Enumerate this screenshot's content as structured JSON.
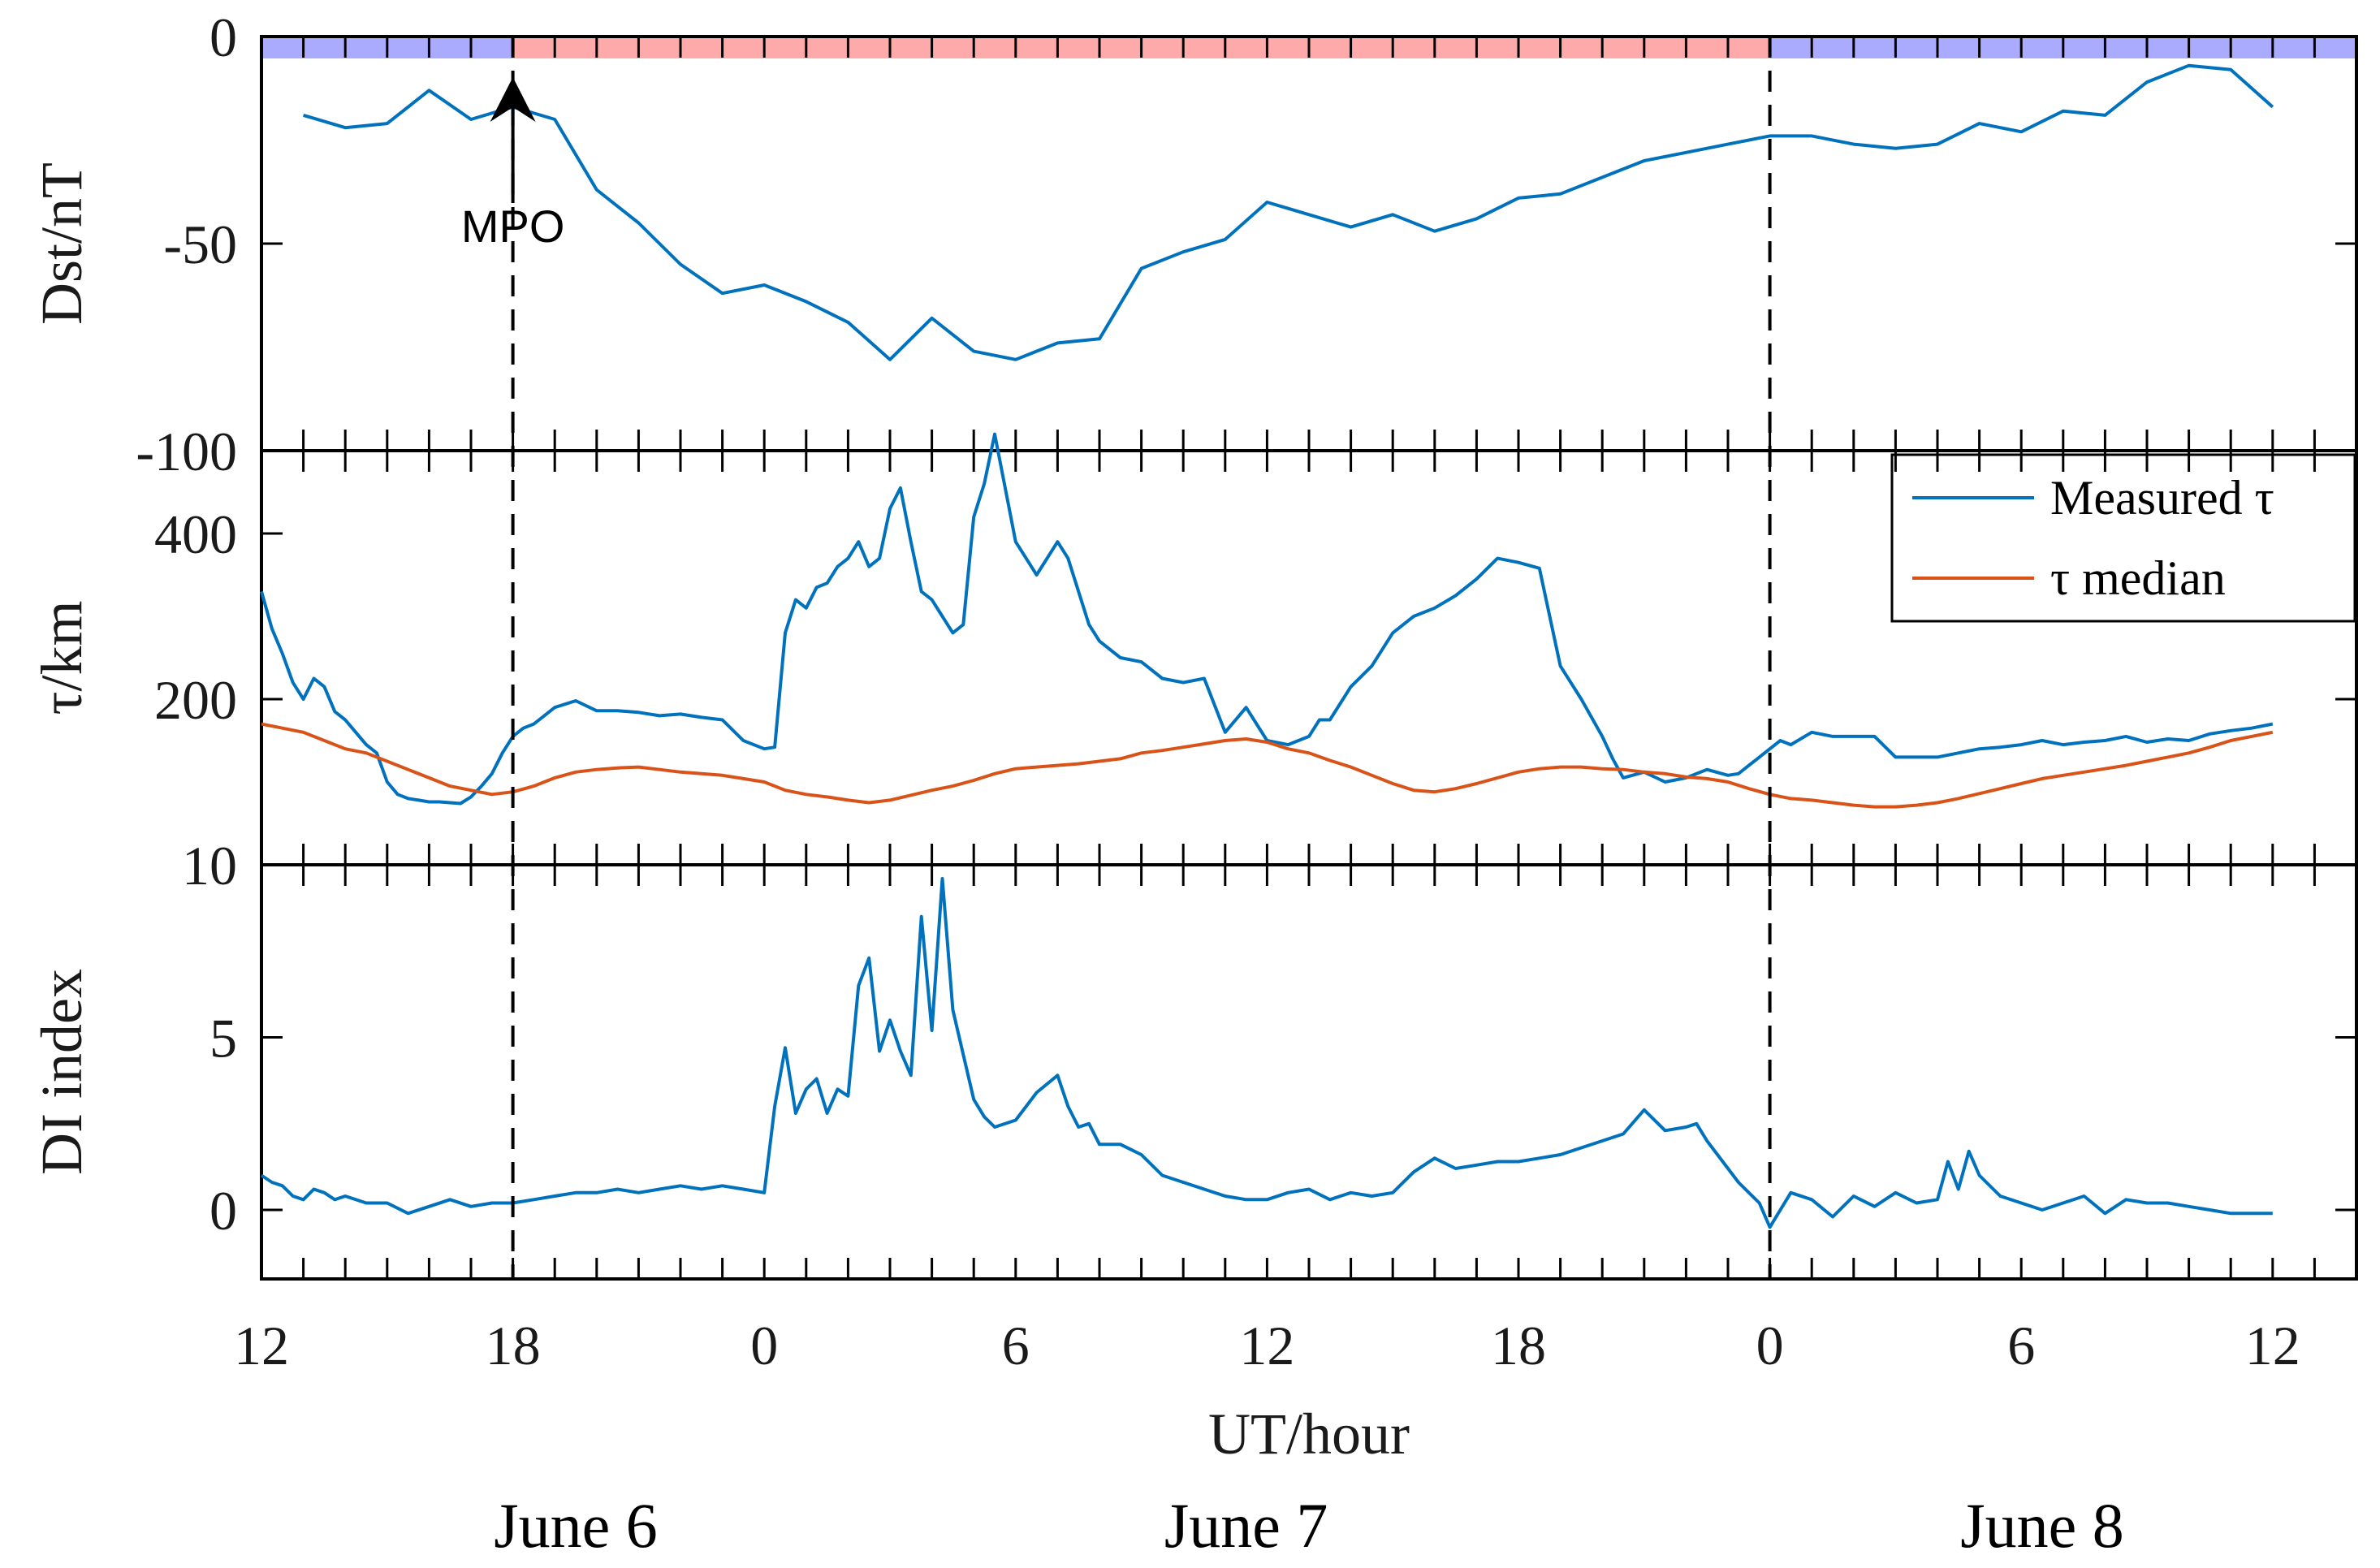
{
  "chart_data": {
    "type": "line",
    "x_axis": {
      "label": "UT/hour",
      "range_hours": [
        0,
        50
      ],
      "tick_hours": [
        0,
        6,
        12,
        18,
        24,
        30,
        36,
        42,
        48
      ],
      "tick_labels": [
        "12",
        "18",
        "0",
        "6",
        "12",
        "18",
        "0",
        "6",
        "12"
      ],
      "date_labels": [
        {
          "text": "June 6",
          "at_hour": 7.5
        },
        {
          "text": "June 7",
          "at_hour": 23.5
        },
        {
          "text": "June 8",
          "at_hour": 42.5
        }
      ]
    },
    "markers": {
      "dashed_lines_hours": [
        6,
        36
      ],
      "annotation": {
        "text": "MPO",
        "at_hour": 6
      },
      "phase_bar": [
        {
          "from": 0,
          "to": 6,
          "color": "#aaaaff"
        },
        {
          "from": 6,
          "to": 36,
          "color": "#ffaaaa"
        },
        {
          "from": 36,
          "to": 50,
          "color": "#aaaaff"
        }
      ]
    },
    "colors": {
      "blue": "#0072BD",
      "orange": "#D95319"
    },
    "panels": [
      {
        "id": "dst",
        "ylabel": "Dst/nT",
        "ylim": [
          -100,
          0
        ],
        "yticks": [
          0,
          -50,
          -100
        ],
        "ytick_labels": [
          "0",
          "-50",
          "-100"
        ],
        "series": [
          {
            "name": "Dst",
            "color": "#0072BD",
            "x": [
              1,
              2,
              3,
              4,
              5,
              6,
              7,
              8,
              9,
              10,
              11,
              12,
              13,
              14,
              15,
              16,
              17,
              18,
              19,
              20,
              21,
              22,
              23,
              24,
              25,
              26,
              27,
              28,
              29,
              30,
              31,
              32,
              33,
              34,
              35,
              36,
              37,
              38,
              39,
              40,
              41,
              42,
              43,
              44,
              45,
              46,
              47,
              48
            ],
            "y": [
              -19,
              -22,
              -21,
              -13,
              -20,
              -17,
              -20,
              -37,
              -45,
              -55,
              -62,
              -60,
              -64,
              -69,
              -78,
              -68,
              -76,
              -78,
              -74,
              -73,
              -56,
              -52,
              -49,
              -40,
              -43,
              -46,
              -43,
              -47,
              -44,
              -39,
              -38,
              -34,
              -30,
              -28,
              -26,
              -24,
              -24,
              -26,
              -27,
              -26,
              -21,
              -23,
              -18,
              -19,
              -11,
              -7,
              -8,
              -17
            ]
          }
        ]
      },
      {
        "id": "tau",
        "ylabel": "τ/km",
        "ylim": [
          0,
          500
        ],
        "yticks": [
          200,
          400
        ],
        "ytick_labels": [
          "200",
          "400"
        ],
        "legend": {
          "entries": [
            {
              "label": "Measured τ",
              "color": "#0072BD"
            },
            {
              "label": "τ median",
              "color": "#D95319"
            }
          ]
        },
        "series": [
          {
            "name": "Measured τ",
            "color": "#0072BD",
            "x": [
              0,
              0.25,
              0.5,
              0.75,
              1,
              1.25,
              1.5,
              1.75,
              2,
              2.25,
              2.5,
              2.75,
              3,
              3.25,
              3.5,
              3.75,
              4,
              4.25,
              4.5,
              4.75,
              5,
              5.25,
              5.5,
              5.75,
              6,
              6.25,
              6.5,
              6.75,
              7,
              7.5,
              8,
              8.5,
              9,
              9.5,
              10,
              10.5,
              11,
              11.5,
              12,
              12.25,
              12.5,
              12.75,
              13,
              13.25,
              13.5,
              13.75,
              14,
              14.25,
              14.5,
              14.75,
              15,
              15.25,
              15.5,
              15.75,
              16,
              16.25,
              16.5,
              16.75,
              17,
              17.25,
              17.5,
              18,
              18.5,
              19,
              19.25,
              19.5,
              19.75,
              20,
              20.5,
              21,
              21.5,
              22,
              22.5,
              23,
              23.5,
              24,
              24.5,
              25,
              25.25,
              25.5,
              26,
              26.5,
              27,
              27.5,
              28,
              28.5,
              29,
              29.5,
              30,
              30.5,
              31,
              31.5,
              32,
              32.25,
              32.5,
              33,
              33.5,
              34,
              34.5,
              35,
              35.25,
              35.5,
              35.75,
              36,
              36.25,
              36.5,
              37,
              37.5,
              38,
              38.5,
              39,
              39.5,
              40,
              40.5,
              41,
              41.5,
              42,
              42.5,
              43,
              43.5,
              44,
              44.5,
              45,
              45.5,
              46,
              46.5,
              47,
              47.5,
              48
            ],
            "y": [
              330,
              285,
              255,
              220,
              200,
              225,
              215,
              185,
              175,
              160,
              145,
              135,
              100,
              85,
              80,
              78,
              76,
              76,
              75,
              74,
              82,
              95,
              110,
              135,
              155,
              165,
              170,
              180,
              190,
              198,
              186,
              186,
              184,
              180,
              182,
              178,
              175,
              150,
              140,
              142,
              280,
              320,
              310,
              335,
              340,
              360,
              370,
              390,
              360,
              370,
              430,
              455,
              390,
              330,
              320,
              300,
              280,
              290,
              420,
              460,
              520,
              390,
              350,
              390,
              370,
              330,
              290,
              270,
              250,
              245,
              225,
              220,
              225,
              160,
              190,
              150,
              145,
              155,
              175,
              175,
              215,
              240,
              280,
              300,
              310,
              325,
              345,
              370,
              365,
              358,
              240,
              200,
              155,
              128,
              105,
              112,
              100,
              105,
              115,
              108,
              110,
              120,
              130,
              140,
              150,
              145,
              160,
              155,
              155,
              155,
              130,
              130,
              130,
              135,
              140,
              142,
              145,
              150,
              145,
              148,
              150,
              155,
              148,
              152,
              150,
              158,
              162,
              165,
              170
            ]
          },
          {
            "name": "τ median",
            "color": "#D95319",
            "x": [
              0,
              0.5,
              1,
              1.5,
              2,
              2.5,
              3,
              3.5,
              4,
              4.5,
              5,
              5.5,
              6,
              6.5,
              7,
              7.5,
              8,
              8.5,
              9,
              9.5,
              10,
              10.5,
              11,
              11.5,
              12,
              12.5,
              13,
              13.5,
              14,
              14.5,
              15,
              15.5,
              16,
              16.5,
              17,
              17.5,
              18,
              18.5,
              19,
              19.5,
              20,
              20.5,
              21,
              21.5,
              22,
              22.5,
              23,
              23.5,
              24,
              24.5,
              25,
              25.5,
              26,
              26.5,
              27,
              27.5,
              28,
              28.5,
              29,
              29.5,
              30,
              30.5,
              31,
              31.5,
              32,
              32.5,
              33,
              33.5,
              34,
              34.5,
              35,
              35.5,
              36,
              36.5,
              37,
              37.5,
              38,
              38.5,
              39,
              39.5,
              40,
              40.5,
              41,
              41.5,
              42,
              42.5,
              43,
              43.5,
              44,
              44.5,
              45,
              45.5,
              46,
              46.5,
              47,
              47.5,
              48
            ],
            "y": [
              170,
              165,
              160,
              150,
              140,
              135,
              125,
              115,
              105,
              95,
              90,
              85,
              88,
              95,
              105,
              112,
              115,
              117,
              118,
              115,
              112,
              110,
              108,
              104,
              100,
              90,
              85,
              82,
              78,
              75,
              78,
              84,
              90,
              95,
              102,
              110,
              116,
              118,
              120,
              122,
              125,
              128,
              135,
              138,
              142,
              146,
              150,
              152,
              148,
              140,
              135,
              126,
              118,
              108,
              98,
              90,
              88,
              92,
              98,
              105,
              112,
              116,
              118,
              118,
              116,
              115,
              112,
              110,
              106,
              104,
              100,
              92,
              85,
              80,
              78,
              75,
              72,
              70,
              70,
              72,
              75,
              80,
              86,
              92,
              98,
              104,
              108,
              112,
              116,
              120,
              125,
              130,
              135,
              142,
              150,
              155,
              160
            ]
          }
        ]
      },
      {
        "id": "di",
        "ylabel": "DI index",
        "ylim": [
          -2,
          10
        ],
        "yticks": [
          0,
          5,
          10
        ],
        "ytick_labels": [
          "0",
          "5",
          "10"
        ],
        "series": [
          {
            "name": "DI index",
            "color": "#0072BD",
            "x": [
              0,
              0.25,
              0.5,
              0.75,
              1,
              1.25,
              1.5,
              1.75,
              2,
              2.5,
              3,
              3.5,
              4,
              4.5,
              5,
              5.5,
              6,
              6.5,
              7,
              7.5,
              8,
              8.5,
              9,
              9.5,
              10,
              10.5,
              11,
              11.5,
              12,
              12.25,
              12.5,
              12.75,
              13,
              13.25,
              13.5,
              13.75,
              14,
              14.25,
              14.5,
              14.75,
              15,
              15.25,
              15.5,
              15.75,
              16,
              16.25,
              16.5,
              16.75,
              17,
              17.25,
              17.5,
              18,
              18.5,
              19,
              19.25,
              19.5,
              19.75,
              20,
              20.5,
              21,
              21.5,
              22,
              22.5,
              23,
              23.5,
              24,
              24.5,
              25,
              25.5,
              26,
              26.5,
              27,
              27.5,
              28,
              28.5,
              29,
              29.5,
              30,
              30.5,
              31,
              31.5,
              32,
              32.5,
              33,
              33.5,
              34,
              34.25,
              34.5,
              34.75,
              35,
              35.25,
              35.5,
              35.75,
              36,
              36.25,
              36.5,
              37,
              37.5,
              38,
              38.5,
              39,
              39.5,
              40,
              40.25,
              40.5,
              40.75,
              41,
              41.5,
              42,
              42.5,
              43,
              43.5,
              44,
              44.5,
              45,
              45.5,
              46,
              46.5,
              47,
              47.5,
              48
            ],
            "y": [
              1.0,
              0.8,
              0.7,
              0.4,
              0.3,
              0.6,
              0.5,
              0.3,
              0.4,
              0.2,
              0.2,
              -0.1,
              0.1,
              0.3,
              0.1,
              0.2,
              0.2,
              0.3,
              0.4,
              0.5,
              0.5,
              0.6,
              0.5,
              0.6,
              0.7,
              0.6,
              0.7,
              0.6,
              0.5,
              3.0,
              4.7,
              2.8,
              3.5,
              3.8,
              2.8,
              3.5,
              3.3,
              6.5,
              7.3,
              4.6,
              5.5,
              4.6,
              3.9,
              8.5,
              5.2,
              9.6,
              5.8,
              4.5,
              3.2,
              2.7,
              2.4,
              2.6,
              3.4,
              3.9,
              3.0,
              2.4,
              2.5,
              1.9,
              1.9,
              1.6,
              1.0,
              0.8,
              0.6,
              0.4,
              0.3,
              0.3,
              0.5,
              0.6,
              0.3,
              0.5,
              0.4,
              0.5,
              1.1,
              1.5,
              1.2,
              1.3,
              1.4,
              1.4,
              1.5,
              1.6,
              1.8,
              2.0,
              2.2,
              2.9,
              2.3,
              2.4,
              2.5,
              2.0,
              1.6,
              1.2,
              0.8,
              0.5,
              0.2,
              -0.5,
              0.0,
              0.5,
              0.3,
              -0.2,
              0.4,
              0.1,
              0.5,
              0.2,
              0.3,
              1.4,
              0.6,
              1.7,
              1.0,
              0.4,
              0.2,
              0.0,
              0.2,
              0.4,
              -0.1,
              0.3,
              0.2,
              0.2,
              0.1,
              0.0,
              -0.1,
              -0.1,
              -0.1
            ]
          }
        ]
      }
    ]
  }
}
